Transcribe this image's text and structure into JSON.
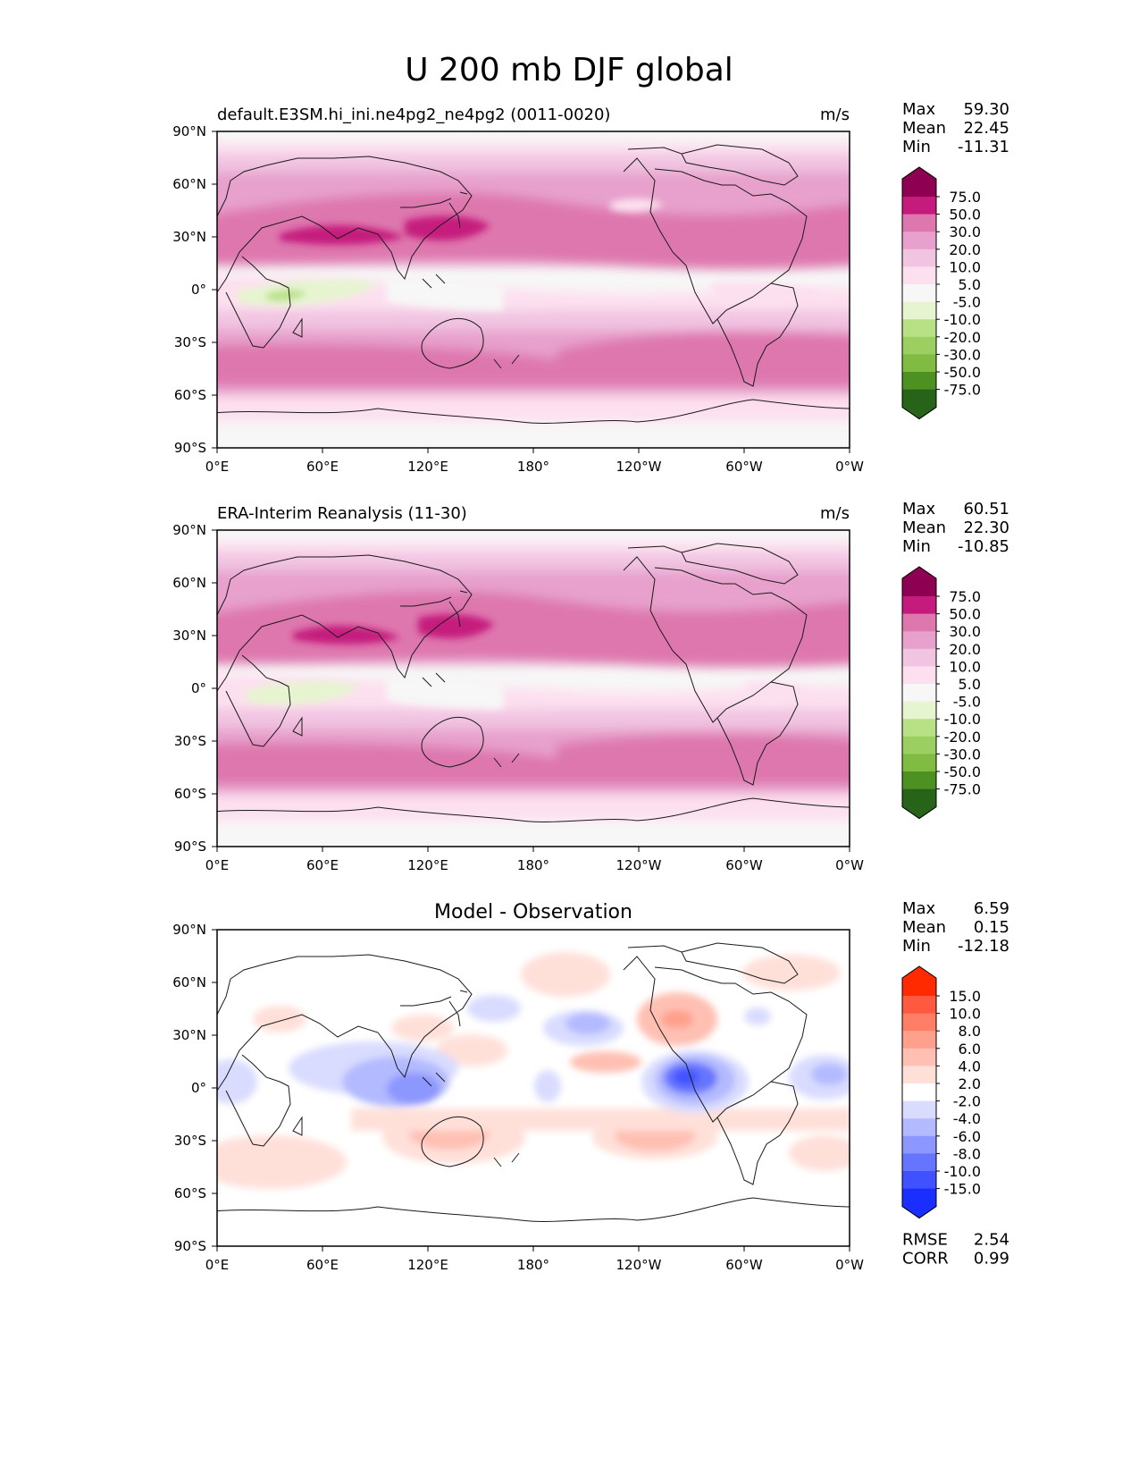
{
  "figure": {
    "title": "U 200 mb DJF global"
  },
  "axes": {
    "lat_ticks": [
      "90°N",
      "60°N",
      "30°N",
      "0°",
      "30°S",
      "60°S",
      "90°S"
    ],
    "lon_ticks": [
      "0°E",
      "60°E",
      "120°E",
      "180°",
      "120°W",
      "60°W",
      "0°W"
    ]
  },
  "panels": [
    {
      "id": "model",
      "title_left": "default.E3SM.hi_ini.ne4pg2_ne4pg2 (0011-0020)",
      "title_center": "",
      "units": "m/s",
      "stats": [
        {
          "label": "Max",
          "value": "59.30"
        },
        {
          "label": "Mean",
          "value": "22.45"
        },
        {
          "label": "Min",
          "value": "-11.31"
        }
      ],
      "colorbar": {
        "labels": [
          "75.0",
          "50.0",
          "30.0",
          "20.0",
          "10.0",
          "5.0",
          "-5.0",
          "-10.0",
          "-20.0",
          "-30.0",
          "-50.0",
          "-75.0"
        ],
        "colors": [
          "#8e0152",
          "#c51b7d",
          "#de77ae",
          "#e7a1cc",
          "#f1c4e2",
          "#fde0ef",
          "#f7f7f7",
          "#e6f5d0",
          "#b8e186",
          "#9ccf62",
          "#7fbc41",
          "#4d9221",
          "#276419"
        ]
      },
      "footer_stats": []
    },
    {
      "id": "obs",
      "title_left": "ERA-Interim Reanalysis (11-30)",
      "title_center": "",
      "units": "m/s",
      "stats": [
        {
          "label": "Max",
          "value": "60.51"
        },
        {
          "label": "Mean",
          "value": "22.30"
        },
        {
          "label": "Min",
          "value": "-10.85"
        }
      ],
      "colorbar": {
        "labels": [
          "75.0",
          "50.0",
          "30.0",
          "20.0",
          "10.0",
          "5.0",
          "-5.0",
          "-10.0",
          "-20.0",
          "-30.0",
          "-50.0",
          "-75.0"
        ],
        "colors": [
          "#8e0152",
          "#c51b7d",
          "#de77ae",
          "#e7a1cc",
          "#f1c4e2",
          "#fde0ef",
          "#f7f7f7",
          "#e6f5d0",
          "#b8e186",
          "#9ccf62",
          "#7fbc41",
          "#4d9221",
          "#276419"
        ]
      },
      "footer_stats": []
    },
    {
      "id": "diff",
      "title_left": "",
      "title_center": "Model - Observation",
      "units": "",
      "stats": [
        {
          "label": "Max",
          "value": "6.59"
        },
        {
          "label": "Mean",
          "value": "0.15"
        },
        {
          "label": "Min",
          "value": "-12.18"
        }
      ],
      "colorbar": {
        "labels": [
          "15.0",
          "10.0",
          "8.0",
          "6.0",
          "4.0",
          "2.0",
          "-2.0",
          "-4.0",
          "-6.0",
          "-8.0",
          "-10.0",
          "-15.0"
        ],
        "colors": [
          "#ff2a00",
          "#ff5a40",
          "#ff7f66",
          "#ffa08c",
          "#ffc0b3",
          "#ffe0d9",
          "#ffffff",
          "#d9dcff",
          "#b3baff",
          "#8c97ff",
          "#6675ff",
          "#4052ff",
          "#1a2eff"
        ]
      },
      "footer_stats": [
        {
          "label": "RMSE",
          "value": "2.54"
        },
        {
          "label": "CORR",
          "value": "0.99"
        }
      ]
    }
  ],
  "colors": {
    "coast": "#1a1a1a",
    "frame": "#000000",
    "ocean_base_model": "#f7f7f7",
    "ocean_base_diff": "#ffffff"
  }
}
